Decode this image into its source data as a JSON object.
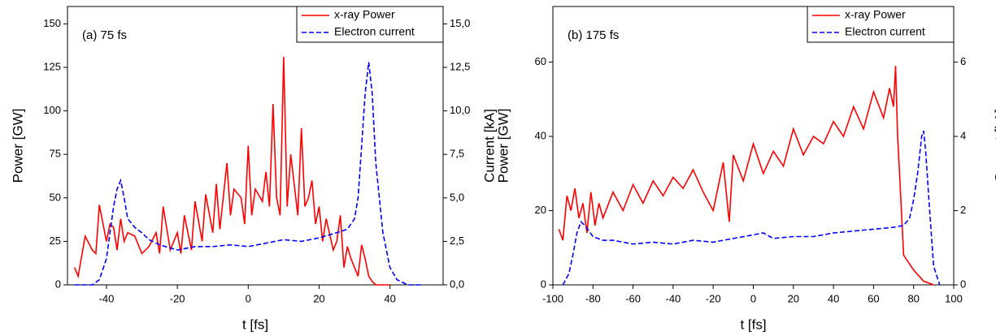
{
  "chart_data": [
    {
      "type": "line",
      "annotation": "(a) 75 fs",
      "xlabel": "t [fs]",
      "ylabel": "Power [GW]",
      "y2label": "Current [kA]",
      "xlim": [
        -51,
        55
      ],
      "xticks": [
        -40,
        -20,
        0,
        20,
        40
      ],
      "ylim": [
        0,
        160
      ],
      "yticks": [
        0,
        25,
        50,
        75,
        100,
        125,
        150
      ],
      "y2lim": [
        0,
        16
      ],
      "y2ticks": [
        {
          "value": 0,
          "label": "0,0"
        },
        {
          "value": 2.5,
          "label": "2,5"
        },
        {
          "value": 5,
          "label": "5,0"
        },
        {
          "value": 7.5,
          "label": "7,5"
        },
        {
          "value": 10,
          "label": "10,0"
        },
        {
          "value": 12.5,
          "label": "12,5"
        },
        {
          "value": 15,
          "label": "15,0"
        }
      ],
      "legend": "upper right",
      "series": [
        {
          "name": "x-ray Power",
          "color": "#ff0000",
          "style": "solid",
          "x": [
            -49,
            -48,
            -46,
            -44,
            -43,
            -42,
            -40,
            -39,
            -38,
            -37,
            -36,
            -35,
            -34,
            -32,
            -30,
            -28,
            -26,
            -25,
            -24,
            -22,
            -20,
            -19,
            -18,
            -16,
            -15,
            -13,
            -12,
            -10,
            -9,
            -8,
            -6,
            -5,
            -4,
            -2,
            -1,
            0,
            1,
            2,
            4,
            5,
            6,
            7,
            8,
            9,
            10,
            11,
            12,
            14,
            15,
            16,
            17,
            18,
            19,
            20,
            21,
            22,
            24,
            25,
            26,
            27,
            28,
            29,
            30,
            31,
            32,
            33,
            34,
            35,
            36,
            38,
            40
          ],
          "values": [
            10,
            5,
            28,
            20,
            18,
            46,
            25,
            35,
            33,
            20,
            38,
            25,
            30,
            28,
            18,
            22,
            30,
            18,
            45,
            20,
            30,
            18,
            40,
            20,
            48,
            25,
            52,
            30,
            58,
            32,
            70,
            40,
            55,
            50,
            35,
            80,
            40,
            55,
            48,
            65,
            45,
            104,
            50,
            40,
            131,
            45,
            75,
            40,
            90,
            45,
            50,
            60,
            35,
            45,
            25,
            38,
            20,
            25,
            40,
            10,
            22,
            15,
            10,
            5,
            23,
            15,
            5,
            2,
            0,
            0,
            0
          ]
        },
        {
          "name": "Electron current",
          "color": "#0000ff",
          "style": "dashed",
          "axis": "y2",
          "x": [
            -49,
            -44,
            -42,
            -40,
            -38,
            -37,
            -36,
            -35,
            -34,
            -32,
            -30,
            -28,
            -25,
            -20,
            -15,
            -10,
            -5,
            0,
            5,
            10,
            15,
            20,
            25,
            28,
            30,
            31,
            32,
            33,
            34,
            35,
            36,
            38,
            40,
            42,
            45,
            49
          ],
          "values": [
            0,
            0,
            0.3,
            1.5,
            4.5,
            5.5,
            6,
            5,
            3.8,
            3.3,
            3,
            2.6,
            2.3,
            2.0,
            2.2,
            2.2,
            2.3,
            2.2,
            2.4,
            2.6,
            2.5,
            2.7,
            3.0,
            3.2,
            3.8,
            5,
            8,
            11,
            12.8,
            11,
            7,
            3,
            1,
            0.3,
            0,
            0
          ]
        }
      ]
    },
    {
      "type": "line",
      "annotation": "(b) 175 fs",
      "xlabel": "t [fs]",
      "ylabel": "Power [GW]",
      "y2label": "Current [kA]",
      "xlim": [
        -100,
        100
      ],
      "xticks": [
        -100,
        -80,
        -60,
        -40,
        -20,
        0,
        20,
        40,
        60,
        80,
        100
      ],
      "ylim": [
        0,
        75
      ],
      "yticks": [
        0,
        20,
        40,
        60
      ],
      "y2lim": [
        0,
        7.5
      ],
      "y2ticks": [
        0,
        2,
        4,
        6
      ],
      "legend": "upper right",
      "series": [
        {
          "name": "x-ray Power",
          "color": "#ff0000",
          "style": "solid",
          "x": [
            -97,
            -95,
            -93,
            -91,
            -89,
            -87,
            -85,
            -83,
            -81,
            -79,
            -77,
            -75,
            -70,
            -65,
            -60,
            -55,
            -50,
            -45,
            -40,
            -35,
            -30,
            -25,
            -20,
            -15,
            -12,
            -10,
            -5,
            0,
            5,
            10,
            15,
            20,
            25,
            30,
            35,
            40,
            45,
            50,
            55,
            60,
            65,
            68,
            70,
            71,
            72,
            73,
            75,
            80,
            85,
            90
          ],
          "values": [
            15,
            12,
            24,
            20,
            26,
            18,
            22,
            14,
            25,
            16,
            22,
            18,
            25,
            20,
            27,
            22,
            28,
            24,
            29,
            26,
            31,
            25,
            20,
            33,
            17,
            35,
            28,
            38,
            30,
            36,
            32,
            42,
            35,
            40,
            38,
            44,
            40,
            48,
            42,
            52,
            45,
            53,
            48,
            59,
            40,
            30,
            8,
            4,
            1,
            0
          ]
        },
        {
          "name": "Electron current",
          "color": "#0000ff",
          "style": "dashed",
          "axis": "y2",
          "x": [
            -95,
            -92,
            -90,
            -88,
            -86,
            -84,
            -80,
            -75,
            -70,
            -60,
            -50,
            -40,
            -30,
            -20,
            -10,
            0,
            5,
            10,
            20,
            30,
            40,
            50,
            60,
            70,
            75,
            78,
            80,
            82,
            84,
            85,
            86,
            88,
            90,
            93
          ],
          "values": [
            0,
            0.3,
            0.8,
            1.4,
            1.7,
            1.6,
            1.3,
            1.2,
            1.2,
            1.1,
            1.15,
            1.1,
            1.2,
            1.15,
            1.25,
            1.35,
            1.4,
            1.25,
            1.3,
            1.3,
            1.4,
            1.45,
            1.5,
            1.55,
            1.6,
            1.8,
            2.3,
            3,
            4,
            4.15,
            3.6,
            2,
            0.5,
            0
          ]
        }
      ]
    }
  ]
}
